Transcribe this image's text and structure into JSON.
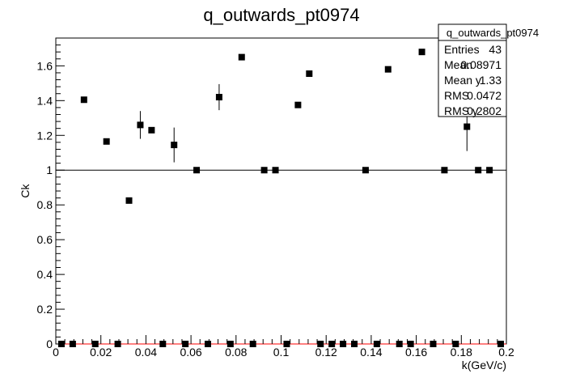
{
  "chart_data": {
    "type": "scatter",
    "title": "q_outwards_pt0974",
    "xlabel": "k(GeV/c)",
    "ylabel": "Ck",
    "xlim": [
      0,
      0.2
    ],
    "ylim": [
      0,
      1.76
    ],
    "x_ticks": [
      0,
      0.02,
      0.04,
      0.06,
      0.08,
      0.1,
      0.12,
      0.14,
      0.16,
      0.18,
      0.2
    ],
    "x_tick_labels": [
      "0",
      "0.02",
      "0.04",
      "0.06",
      "0.08",
      "0.1",
      "0.12",
      "0.14",
      "0.16",
      "0.18",
      "0.2"
    ],
    "y_ticks": [
      0,
      0.2,
      0.4,
      0.6,
      0.8,
      1,
      1.2,
      1.4,
      1.6
    ],
    "y_tick_labels": [
      "0",
      "0.2",
      "0.4",
      "0.6",
      "0.8",
      "1",
      "1.2",
      "1.4",
      "1.6"
    ],
    "reference_line": {
      "y": 1,
      "color": "#000000"
    },
    "baseline_line": {
      "y": 0,
      "color": "#ff0000"
    },
    "marker_color": "#000000",
    "points": [
      {
        "x": 0.0025,
        "y": 0.0,
        "err": 0
      },
      {
        "x": 0.0075,
        "y": 0.0,
        "err": 0
      },
      {
        "x": 0.0125,
        "y": 1.405,
        "err": 0
      },
      {
        "x": 0.0175,
        "y": 0.0,
        "err": 0
      },
      {
        "x": 0.0225,
        "y": 1.165,
        "err": 0
      },
      {
        "x": 0.0275,
        "y": 0.0,
        "err": 0
      },
      {
        "x": 0.0325,
        "y": 0.825,
        "err": 0
      },
      {
        "x": 0.0375,
        "y": 1.26,
        "err": 0.08
      },
      {
        "x": 0.0425,
        "y": 1.23,
        "err": 0
      },
      {
        "x": 0.0475,
        "y": 0.0,
        "err": 0
      },
      {
        "x": 0.0525,
        "y": 1.145,
        "err": 0.1
      },
      {
        "x": 0.0575,
        "y": 0.0,
        "err": 0
      },
      {
        "x": 0.0625,
        "y": 1.0,
        "err": 0
      },
      {
        "x": 0.0675,
        "y": 0.0,
        "err": 0
      },
      {
        "x": 0.0725,
        "y": 1.42,
        "err": 0.075
      },
      {
        "x": 0.0775,
        "y": 0.0,
        "err": 0
      },
      {
        "x": 0.0825,
        "y": 1.65,
        "err": 0
      },
      {
        "x": 0.0875,
        "y": 0.0,
        "err": 0
      },
      {
        "x": 0.0925,
        "y": 1.0,
        "err": 0
      },
      {
        "x": 0.0975,
        "y": 1.0,
        "err": 0
      },
      {
        "x": 0.1025,
        "y": 0.0,
        "err": 0
      },
      {
        "x": 0.1075,
        "y": 1.375,
        "err": 0
      },
      {
        "x": 0.1125,
        "y": 1.555,
        "err": 0
      },
      {
        "x": 0.1175,
        "y": 0.0,
        "err": 0
      },
      {
        "x": 0.1225,
        "y": 0.0,
        "err": 0
      },
      {
        "x": 0.1275,
        "y": 0.0,
        "err": 0
      },
      {
        "x": 0.1325,
        "y": 0.0,
        "err": 0
      },
      {
        "x": 0.1375,
        "y": 1.0,
        "err": 0
      },
      {
        "x": 0.1425,
        "y": 0.0,
        "err": 0
      },
      {
        "x": 0.1475,
        "y": 1.58,
        "err": 0
      },
      {
        "x": 0.1525,
        "y": 0.0,
        "err": 0
      },
      {
        "x": 0.1575,
        "y": 0.0,
        "err": 0
      },
      {
        "x": 0.1625,
        "y": 1.68,
        "err": 0
      },
      {
        "x": 0.1675,
        "y": 0.0,
        "err": 0
      },
      {
        "x": 0.1725,
        "y": 1.0,
        "err": 0
      },
      {
        "x": 0.1775,
        "y": 0.0,
        "err": 0
      },
      {
        "x": 0.1825,
        "y": 1.25,
        "err": 0.14
      },
      {
        "x": 0.1875,
        "y": 1.0,
        "err": 0
      },
      {
        "x": 0.1925,
        "y": 1.0,
        "err": 0
      },
      {
        "x": 0.1975,
        "y": 0.0,
        "err": 0
      }
    ],
    "stats_box": {
      "title": "q_outwards_pt0974",
      "rows": [
        {
          "label": "Entries",
          "value": "43"
        },
        {
          "label": "Mean",
          "value": "0.08971"
        },
        {
          "label": "Mean y",
          "value": "1.33"
        },
        {
          "label": "RMS",
          "value": "0.0472"
        },
        {
          "label": "RMS y",
          "value": "0.2802"
        }
      ]
    }
  }
}
